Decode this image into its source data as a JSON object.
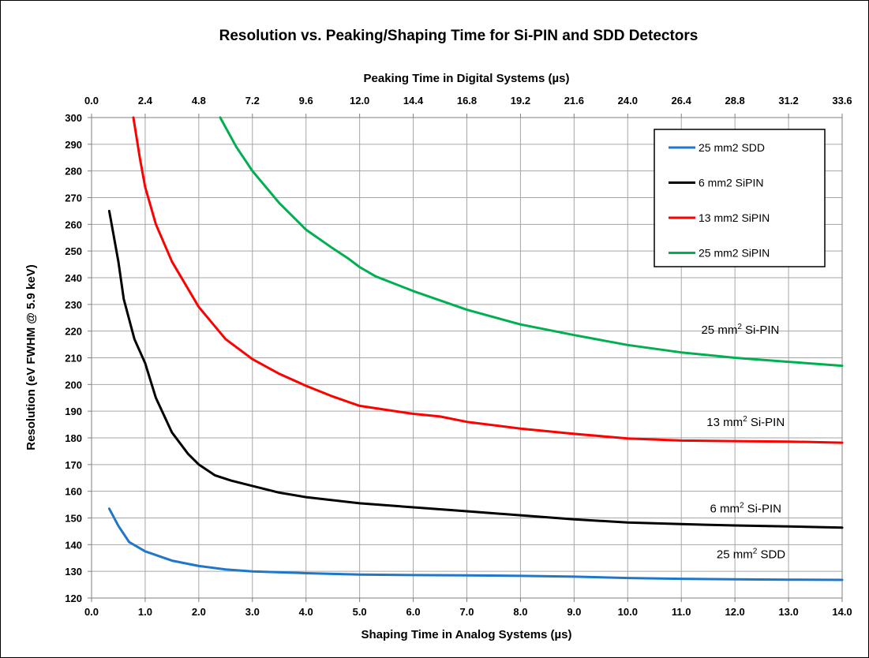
{
  "chart_data": {
    "type": "line",
    "title": "Resolution vs. Peaking/Shaping Time for Si-PIN and SDD Detectors",
    "xlabel": "Shaping Time in Analog Systems (µs)",
    "x2label": "Peaking Time in Digital Systems (µs)",
    "ylabel": "Resolution (eV FWHM @ 5.9 keV)",
    "xlim": [
      0,
      14
    ],
    "ylim": [
      120,
      300
    ],
    "x_ticks": [
      "0.0",
      "1.0",
      "2.0",
      "3.0",
      "4.0",
      "5.0",
      "6.0",
      "7.0",
      "8.0",
      "9.0",
      "10.0",
      "11.0",
      "12.0",
      "13.0",
      "14.0"
    ],
    "x2_ticks": [
      "0.0",
      "2.4",
      "4.8",
      "7.2",
      "9.6",
      "12.0",
      "14.4",
      "16.8",
      "19.2",
      "21.6",
      "24.0",
      "26.4",
      "28.8",
      "31.2",
      "33.6"
    ],
    "y_ticks": [
      "120",
      "130",
      "140",
      "150",
      "160",
      "170",
      "180",
      "190",
      "200",
      "210",
      "220",
      "230",
      "240",
      "250",
      "260",
      "270",
      "280",
      "290",
      "300"
    ],
    "grid": true,
    "legend_position": "top-right",
    "series": [
      {
        "name": "25 mm2 SDD",
        "color": "#1f77c9",
        "points": [
          [
            0.33,
            153.5
          ],
          [
            0.5,
            147
          ],
          [
            0.7,
            141
          ],
          [
            1.0,
            137.5
          ],
          [
            1.5,
            134
          ],
          [
            2.0,
            132
          ],
          [
            2.5,
            130.7
          ],
          [
            3.0,
            130
          ],
          [
            4.0,
            129.3
          ],
          [
            5.0,
            128.8
          ],
          [
            6.0,
            128.6
          ],
          [
            7.0,
            128.5
          ],
          [
            8.0,
            128.3
          ],
          [
            9.0,
            128
          ],
          [
            10.0,
            127.5
          ],
          [
            11.0,
            127.2
          ],
          [
            12.0,
            127
          ],
          [
            13.0,
            126.9
          ],
          [
            14.0,
            126.8
          ]
        ]
      },
      {
        "name": "6 mm2 SiPIN",
        "color": "#000000",
        "points": [
          [
            0.33,
            265
          ],
          [
            0.5,
            246
          ],
          [
            0.6,
            232
          ],
          [
            0.8,
            217
          ],
          [
            1.0,
            208
          ],
          [
            1.2,
            195
          ],
          [
            1.5,
            182
          ],
          [
            1.8,
            174
          ],
          [
            2.0,
            170
          ],
          [
            2.3,
            166
          ],
          [
            2.6,
            164
          ],
          [
            3.0,
            162
          ],
          [
            3.5,
            159.5
          ],
          [
            4.0,
            157.8
          ],
          [
            5.0,
            155.5
          ],
          [
            6.0,
            154
          ],
          [
            7.0,
            152.5
          ],
          [
            8.0,
            151
          ],
          [
            9.0,
            149.5
          ],
          [
            10.0,
            148.3
          ],
          [
            11.0,
            147.7
          ],
          [
            12.0,
            147.2
          ],
          [
            13.0,
            146.8
          ],
          [
            14.0,
            146.4
          ]
        ]
      },
      {
        "name": "13 mm2 SiPIN",
        "color": "#ff0000",
        "points": [
          [
            0.78,
            300
          ],
          [
            0.9,
            285
          ],
          [
            1.0,
            274
          ],
          [
            1.2,
            260
          ],
          [
            1.5,
            246
          ],
          [
            2.0,
            229
          ],
          [
            2.5,
            217
          ],
          [
            3.0,
            209.5
          ],
          [
            3.5,
            204
          ],
          [
            4.0,
            199.5
          ],
          [
            4.5,
            195.5
          ],
          [
            5.0,
            192
          ],
          [
            5.5,
            190.5
          ],
          [
            6.0,
            189
          ],
          [
            6.5,
            188
          ],
          [
            7.0,
            186
          ],
          [
            8.0,
            183.5
          ],
          [
            9.0,
            181.5
          ],
          [
            10.0,
            179.8
          ],
          [
            11.0,
            179
          ],
          [
            12.0,
            178.8
          ],
          [
            13.0,
            178.6
          ],
          [
            14.0,
            178.2
          ]
        ]
      },
      {
        "name": "25 mm2 SiPIN",
        "color": "#00b050",
        "points": [
          [
            2.4,
            300
          ],
          [
            2.7,
            289
          ],
          [
            3.0,
            280
          ],
          [
            3.5,
            268
          ],
          [
            4.0,
            258
          ],
          [
            4.5,
            251
          ],
          [
            4.8,
            247
          ],
          [
            5.0,
            244
          ],
          [
            5.3,
            240.5
          ],
          [
            6.0,
            235
          ],
          [
            7.0,
            228
          ],
          [
            8.0,
            222.5
          ],
          [
            9.0,
            218.5
          ],
          [
            10.0,
            214.8
          ],
          [
            11.0,
            212
          ],
          [
            12.0,
            210
          ],
          [
            13.0,
            208.5
          ],
          [
            14.0,
            207
          ]
        ]
      }
    ],
    "annotations": [
      {
        "base": "25 mm",
        "sup": "2",
        "rest": " Si-PIN",
        "x": 12.1,
        "y": 219
      },
      {
        "base": "13 mm",
        "sup": "2",
        "rest": " Si-PIN",
        "x": 12.2,
        "y": 184.5
      },
      {
        "base": "6 mm",
        "sup": "2",
        "rest": " Si-PIN",
        "x": 12.2,
        "y": 152
      },
      {
        "base": "25 mm",
        "sup": "2",
        "rest": " SDD",
        "x": 12.3,
        "y": 135
      }
    ]
  }
}
